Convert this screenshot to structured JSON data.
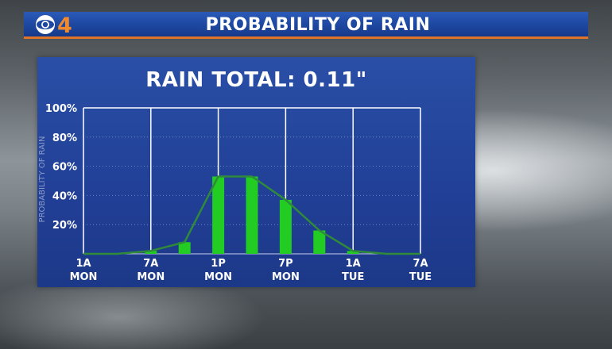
{
  "header": {
    "logo_text": "CBS4",
    "title": "PROBABILITY OF RAIN"
  },
  "colors": {
    "banner_blue": "#1d47a0",
    "banner_accent": "#e0752a",
    "panel_blue": "#213f96",
    "bar_green": "#22cc22",
    "line_green": "#2f8a3a"
  },
  "chart_data": {
    "type": "bar",
    "title": "RAIN TOTAL: 0.11\"",
    "ylabel": "PROBABILITY OF RAIN",
    "xlabel": "",
    "ylim": [
      0,
      100
    ],
    "y_ticks": [
      {
        "value": 20,
        "label": "20%"
      },
      {
        "value": 40,
        "label": "40%"
      },
      {
        "value": 60,
        "label": "60%"
      },
      {
        "value": 80,
        "label": "80%"
      },
      {
        "value": 100,
        "label": "100%"
      }
    ],
    "x_ticks": [
      {
        "hour": 0,
        "line1": "1A",
        "line2": "MON"
      },
      {
        "hour": 6,
        "line1": "7A",
        "line2": "MON"
      },
      {
        "hour": 12,
        "line1": "1P",
        "line2": "MON"
      },
      {
        "hour": 18,
        "line1": "7P",
        "line2": "MON"
      },
      {
        "hour": 24,
        "line1": "1A",
        "line2": "TUE"
      },
      {
        "hour": 30,
        "line1": "7A",
        "line2": "TUE"
      }
    ],
    "x_range": [
      0,
      30
    ],
    "grid": true,
    "bars": [
      {
        "hour": 6,
        "value": 2
      },
      {
        "hour": 9,
        "value": 8
      },
      {
        "hour": 12,
        "value": 53
      },
      {
        "hour": 15,
        "value": 53
      },
      {
        "hour": 18,
        "value": 37
      },
      {
        "hour": 21,
        "value": 16
      },
      {
        "hour": 24,
        "value": 2
      }
    ],
    "trend_line": [
      {
        "hour": 0,
        "value": 0
      },
      {
        "hour": 3,
        "value": 0
      },
      {
        "hour": 6,
        "value": 2
      },
      {
        "hour": 9,
        "value": 8
      },
      {
        "hour": 12,
        "value": 53
      },
      {
        "hour": 15,
        "value": 53
      },
      {
        "hour": 18,
        "value": 37
      },
      {
        "hour": 21,
        "value": 16
      },
      {
        "hour": 24,
        "value": 2
      },
      {
        "hour": 27,
        "value": 0
      },
      {
        "hour": 30,
        "value": 0
      }
    ]
  }
}
